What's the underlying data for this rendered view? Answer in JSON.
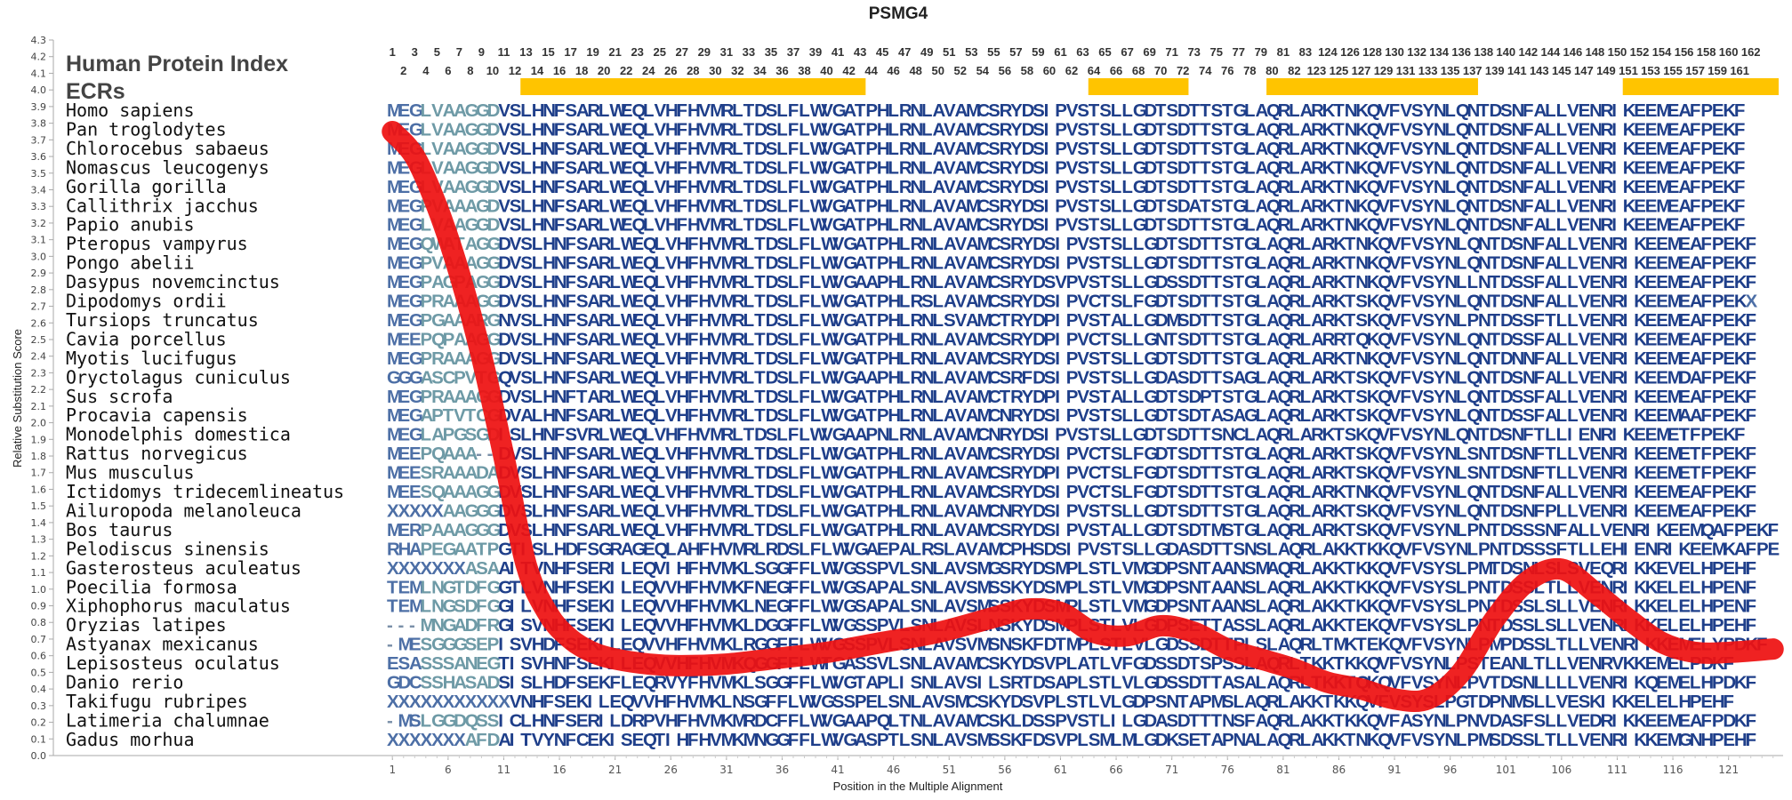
{
  "chart_data": {
    "type": "line",
    "title": "PSMG4",
    "header_label": "Human Protein Index",
    "ecr_label": "ECRs",
    "xlabel": "Position in the Multiple Alignment",
    "ylabel": "Relative Substitution Score",
    "ylim": [
      0.0,
      4.3
    ],
    "yticks": [
      "0.0",
      "0.1",
      "0.2",
      "0.3",
      "0.4",
      "0.5",
      "0.6",
      "0.7",
      "0.8",
      "0.9",
      "1.0",
      "1.1",
      "1.2",
      "1.3",
      "1.4",
      "1.5",
      "1.6",
      "1.7",
      "1.8",
      "1.9",
      "2.0",
      "2.1",
      "2.2",
      "2.3",
      "2.4",
      "2.5",
      "2.6",
      "2.7",
      "2.8",
      "2.9",
      "3.0",
      "3.1",
      "3.2",
      "3.3",
      "3.4",
      "3.5",
      "3.6",
      "3.7",
      "3.8",
      "3.9",
      "4.0",
      "4.1",
      "4.2",
      "4.3"
    ],
    "xlim": [
      1,
      125
    ],
    "xticks": [
      1,
      6,
      11,
      16,
      21,
      26,
      31,
      36,
      41,
      46,
      51,
      56,
      61,
      66,
      71,
      76,
      81,
      86,
      91,
      96,
      101,
      106,
      111,
      116,
      121
    ],
    "human_index": [
      1,
      2,
      3,
      4,
      5,
      6,
      7,
      8,
      9,
      10,
      11,
      12,
      13,
      14,
      15,
      16,
      17,
      18,
      19,
      20,
      21,
      22,
      23,
      24,
      25,
      26,
      27,
      28,
      29,
      30,
      31,
      32,
      33,
      34,
      35,
      36,
      37,
      38,
      39,
      40,
      41,
      42,
      43,
      44,
      45,
      46,
      47,
      48,
      49,
      50,
      51,
      52,
      53,
      54,
      55,
      56,
      57,
      58,
      59,
      60,
      61,
      62,
      63,
      64,
      65,
      66,
      67,
      68,
      69,
      70,
      71,
      72,
      73,
      74,
      75,
      76,
      77,
      78,
      79,
      80,
      81,
      82,
      83,
      123,
      124,
      125,
      126,
      127,
      128,
      129,
      130,
      131,
      132,
      133,
      134,
      135,
      136,
      137,
      138,
      139,
      140,
      141,
      142,
      143,
      144,
      145,
      146,
      147,
      148,
      149,
      150,
      151,
      152,
      153,
      154,
      155,
      156,
      157,
      158,
      159,
      160,
      161,
      162
    ],
    "ecr_regions": [
      [
        13,
        43
      ],
      [
        64,
        72
      ],
      [
        80,
        98
      ],
      [
        112,
        125
      ]
    ],
    "curve": {
      "x": [
        1,
        3,
        5,
        7,
        9,
        11,
        13,
        15,
        17,
        19,
        21,
        24,
        27,
        31,
        35,
        40,
        45,
        50,
        55,
        58,
        61,
        64,
        67,
        70,
        73,
        76,
        79,
        82,
        85,
        88,
        91,
        94,
        97,
        100,
        103,
        106,
        109,
        112,
        115,
        118,
        121,
        125
      ],
      "y": [
        3.75,
        3.6,
        3.3,
        2.9,
        2.4,
        1.8,
        1.15,
        0.85,
        0.7,
        0.62,
        0.58,
        0.55,
        0.54,
        0.55,
        0.58,
        0.62,
        0.68,
        0.74,
        0.83,
        0.88,
        0.86,
        0.74,
        0.72,
        0.78,
        0.74,
        0.64,
        0.58,
        0.52,
        0.44,
        0.4,
        0.34,
        0.34,
        0.5,
        0.82,
        1.05,
        1.12,
        0.98,
        0.82,
        0.68,
        0.62,
        0.62,
        0.64
      ]
    },
    "series": [
      {
        "name": "Homo sapiens",
        "sequence": "MEGLVAAGGDVSLHNFSARLWEQLVHFHVMRLTDSLFLWVGATPHLRNLAVAMCSRYDSIPVSTSLLGDTSDTTSTGLAQRLARKTNKQVFVSYNLQNTDSNFALLVENRIKEEMEAFPEKF"
      },
      {
        "name": "Pan troglodytes",
        "sequence": "MEGLVAAGGDVSLHNFSARLWEQLVHFHVMRLTDSLFLWVGATPHLRNLAVAMCSRYDSIPVSTSLLGDTSDTTSTGLAQRLARKTNKQVFVSYNLQNTDSNFALLVENRIKEEMEAFPEKF"
      },
      {
        "name": "Chlorocebus sabaeus",
        "sequence": "MEGLVAAGGDVSLHNFSARLWEQLVHFHVMRLTDSLFLWVGATPHLRNLAVAMCSRYDSIPVSTSLLGDTSDTTSTGLAQRLARKTNKQVFVSYNLQNTDSNFALLVENRIKEEMEAFPEKF"
      },
      {
        "name": "Nomascus leucogenys",
        "sequence": "MEGLVAAGGDVSLHNFSARLWEQLVHFHVMRLTDSLFLWVGATPHLRNLAVAMCSRYDSIPVSTSLLGDTSDTTSTGLAQRLARKTNKQVFVSYNLQNTDSNFALLVENRIKEEMEAFPEKF"
      },
      {
        "name": "Gorilla gorilla",
        "sequence": "MEGLVAAGGDVSLHNFSARLWEQLVHFHVMRLTDSLFLWVGATPHLRNLAVAMCSRYDSIPVSTSLLGDTSDTTSTGLAQRLARKTNKQVFVSYNLQNTDSNFALLVENRIKEEMEAFPEKF"
      },
      {
        "name": "Callithrix jacchus",
        "sequence": "MEGPVAAAGDVSLHNFSARLWEQLVHFHVMRLTDSLFLWVGATPHLRNLAVAMCSRYDSIPVSTSLLGDTSDATSTGLAQRLARKTNKQVFVSYNLQNTDSNFALLVENRIKEEMEAFPEKF"
      },
      {
        "name": "Papio anubis",
        "sequence": "MEGLVAAGGDVSLHNFSARLWEQLVHFHVMRLTDSLFLWVGATPHLRNLAVAMCSRYDSIPVSTSLLGDTSDTTSTGLAQRLARKTNKQVFVSYNLQNTDSNFALLVENRIKEEMEAFPEKF"
      },
      {
        "name": "Pteropus vampyrus",
        "sequence": "MEGQWATAGGDVSLHNFSARLWEQLVHFHVMRLTDSLFLWVGATPHLRNLAVAMCSRYDSIPVSTSLLGDTSDTTSTGLAQRLARKTNKQVFVSYNLQNTDSNFALLVENRIKEEMEAFPEKF"
      },
      {
        "name": "Pongo abelii",
        "sequence": "MEGPVAAAGGDVSLHNFSARLWEQLVHFHVMRLTDSLFLWVGATPHLRNLAVAMCSRYDSIPVSTSLLGDTSDTTSTGLAQRLARKTNKQVFVSYNLQNTDSNFALLVENRIKEEMEAFPEKF"
      },
      {
        "name": "Dasypus novemcinctus",
        "sequence": "MEGPAGPAGGDVSLHNFSARLWEQLVHFHVMRLTDSLFLWVGAAPHLRNLAVAMCSRYDSVPVSTSLLGDSSDTTSTGLAQRLARKTNKQVFVSYNLLNTDSSFALLVENRIKEEMEAFPEKF"
      },
      {
        "name": "Dipodomys ordii",
        "sequence": "MEGPRAAAGGDVSLHNFSARLWEQLVHFHVMRLTDSLFLWVGATPHLRSLAVAMCSRYDSIPVCTSLFGDTSDTTSTGLAQRLARKTSKQVFVSYNLQNTDSNFALLVENRIKEEMEAFPEKX"
      },
      {
        "name": "Tursiops truncatus",
        "sequence": "MEGPGAAARGNVSLHNFSARLWEQLVHFHVMRLTDSLFLWVGATPHLRNLSVAMCTRYDPIPVSTALLGDMSDTTSTGLAQRLARKTSKQVFVSYNLPNTDSSFTLLVENRIKEEMEAFPEKF"
      },
      {
        "name": "Cavia porcellus",
        "sequence": "MEEPQPAAGGDVSLHNFSARLWEQLVHFHVMRLTDSLFLWVGATPHLRNLAVAMCSRYDPIPVCTSLLGNTSDTTSTGLAQRLARRTQKQVFVSYNLQNTDSSFALLVENRIKEEMEAFPEKF"
      },
      {
        "name": "Myotis lucifugus",
        "sequence": "MEGPRAAAGGDVSLHNFSARLWEQLVHFHVMRLTDSLFLWVGATPHLRNLAVAMCSRYDSIPVSTSLLGDTSDTTSTGLAQRLARKTNKQVFVSYNLQNTDNNFALLVENRIKEEMEAFPEKF"
      },
      {
        "name": "Oryctolagus cuniculus",
        "sequence": "GGGASCPVTGQVSLHNFSARLWEQLVHFHVMRLTDSLFLWVGAAPHLRNLAVAMCSRFDSIPVSTSLLGDASDTTSAGLAQRLARKTSKQVFVSYNLQNTDSNFALLVENRIKEEMDAFPEKF"
      },
      {
        "name": "Sus scrofa",
        "sequence": "MEGPRAAAGGDVSLHNFTARLWEQLVHFHVMRLTDSLFLWVGATPHLRNLAVAMCTRYDPIPVSTALLGDTSDPTSTGLAQRLARKTSKQVFVSYNLQNTDSSFALLVENRIKEEMEAFPEKF"
      },
      {
        "name": "Procavia capensis",
        "sequence": "MEGAPTVTCGDVALHNFSARLWEQLVHFHVMRLTDSLFLWVGATPHLRNLAVAMCNRYDSIPVSTSLLGDTSDTASAGLAQRLARKTSKQVFVSYNLQNTDSSFALLVENRIKEEMAAFPEKF"
      },
      {
        "name": "Monodelphis domestica",
        "sequence": "MEGLAPGSGDISLHNFSVRLWEQLVHFHVMRLTDSLFLWVGAAPNLRNLAVAMCNRYDSIPVSTSLLGDTSDTTSNCLAQRLARKTSKQVFVSYNLQNTDSNFTLLIENRIKEEMETFPEKF"
      },
      {
        "name": "Rattus norvegicus",
        "sequence": "MEEPQAAA--DVSLHNFSARLWEQLVHFHVMRLTDSLFLWVGATPHLRNLAVAMCSRYDSIPVCTSLFGDTSDTTSTGLAQRLARKTSKQVFVSYNLSNTDSNFTLLVENRIKEEMETFPEKF"
      },
      {
        "name": "Mus musculus",
        "sequence": "MEESRAAADADVSLHNFSARLWEQLVHFHVMRLTDSLFLWVGATPHLRNLAVAMCSRYDPIPVCTSLFGDTSDTTSTGLAQRLARKTSKQVFVSYNLSNTDSNFTLLVENRIKEEMETFPEKF"
      },
      {
        "name": "Ictidomys tridecemlineatus",
        "sequence": "MEESQAAAGGDVSLHNFSARLWEQLVHFHVMRLTDSLFLWVGATPHLRNLAVAMCSRYDSIPVCTSLFGDTSDTTSTGLAQRLARKTNKQVFVSYNLQNTDSNFALLVENRIKEEMEAFPEKF"
      },
      {
        "name": "Ailuropoda melanoleuca",
        "sequence": "XXXXXAAGGGDVSLHNFSARLWEQLVHFHVMRLTDSLFLWVGATPHLRNLAVAMCNRYDSIPVSTSLLGDTSDTTSTGLAQRLARKTSKQVFVSYNLQNTDSNFPLLVENRIKEEMEAFPEKF"
      },
      {
        "name": "Bos taurus",
        "sequence": "MERPAAAGGGDVSLHNFSARLWEQLVHFHVMRLTDSLFLWVGATPHLRNLAVAMCSRYDSIPVSTALLGDTSDTMSTGLAQRLARKTSKQVFVSYNLPNTDSSSNFALLVENRIKEEMQAFPEKF"
      },
      {
        "name": "Pelodiscus sinensis",
        "sequence": "RHAPEGAATPGTISLHDFSGRAGEQLAHFHVMRLRDSLFLWVGAEPALRSLAVAMCPHSDSIPVSTSLLGDASDTTSNSLAQRLAKKTKKQVFVSYNLPNTDSSSFTLLEHIENRIKEEMKAFPEKF"
      },
      {
        "name": "Gasterosteus aculeatus",
        "sequence": "XXXXXXXASAAITVNHFSERILEQVIHFHVMKLSGGFFLWVGSSPVLSNLAVSMGSRYDSMPLSTLVMGDPSNTAANSMAQRLAKKTKKQVFVSYSLPMTDSNLSLSVEQRIKKEVELHPEHF"
      },
      {
        "name": "Poecilia formosa",
        "sequence": "TEMLNGTDFGGTLVNHFSEKILEQVVHFHVMKFNEGFFLWVGSAPALSNLAVSMSSKYDSMPLSTLVMGDPSNTAANSLAQRLAKKTKKQVFVSYSLPNTDSSLTLLVENRIKKELELHPENF"
      },
      {
        "name": "Xiphophorus maculatus",
        "sequence": "TEMLNGSDFGGILVNHFSEKILEQVVHFHVMKLNEGFFLWVGSAPALSNLAVSMSSKYDSMPLSTLVMGDPSNTAANSLAQRLAKKTKKQVFVSYSLPNTDSSLSLLVENRIKKELELHPENF"
      },
      {
        "name": "Oryzias latipes",
        "sequence": "---MNGADFRGISVNHFSEKILEQVVHFHVMKLDGGFFLWVGSSPVLSNLAVSLNSKYDSMPLSTLVLGDPSETTASSLAQRLAKKTEKQVFVSYSLPNTDSSLSLLVENRIKKELELHPEHF"
      },
      {
        "name": "Astyanax mexicanus",
        "sequence": "-MESGGGSEPISVHDFSEKILEQVVHFHVMKLRGGFFLWVGSSPVLSNLAVSVMSNSKFDTMPLSTLVLGDSSDTTPISLAQRLTMKTEKQVFVSYNLPMPDSSLTLLVENRIKKEMELYPDKF"
      },
      {
        "name": "Lepisosteus oculatus",
        "sequence": "ESASSSANEGTISVHNFSEKILEQVVHFHVMKQGGFFLWTGASSVLSNLAVAMCSKYDSVPLATLVFGDSSDTSPSSLAQRLTKKTKKQVFVSYNLPSTEANLTLLVENRVKKEMELPDKF"
      },
      {
        "name": "Danio rerio",
        "sequence": "GDCSSHASADSISLHDFSEKFLEQRVYFHVMKLSGGFFLWVGTAPLISNLAVSILSRTDSAPLSTLVLGDSSDTTASALAQRLTKKTQKQVFVSYNLPVTDSNLLLLVENRIKQEMELHPDKF"
      },
      {
        "name": "Takifugu rubripes",
        "sequence": "XXXXXXXXXXXVNHFSEKILEQVVHFHVMKLNSGFFLWVGSSPELSNLAVSMCSKYDSVPLSTLVLGDPSNTAPMSLAQRLAKKTKKQVFVSYSLPGTDPNMSLLVESKIKKELELHPEHF"
      },
      {
        "name": "Latimeria chalumnae",
        "sequence": "-MSLGGDQSSICLHNFSERILDRPVHFHVMKMRDCFFLWVGAAPQLTNLAVAMCSKLDSSPVSTLILGDASDTTTNSFAQRLAKKTKKQVFASYNLPNVDASFSLLVEDRIKKEEMEAFPDKF"
      },
      {
        "name": "Gadus morhua",
        "sequence": "XXXXXXXAFDAITVYNFCEKISEQTIHFHVMKMNGGFFLWVGASPTLSNLAVSMSSKFDSVPLSMLMLGDKSETAPNALAQRLAKKTNKQVFVSYNLPMSDSSLTLLVENRIKKEMGNHPEHF"
      }
    ]
  }
}
